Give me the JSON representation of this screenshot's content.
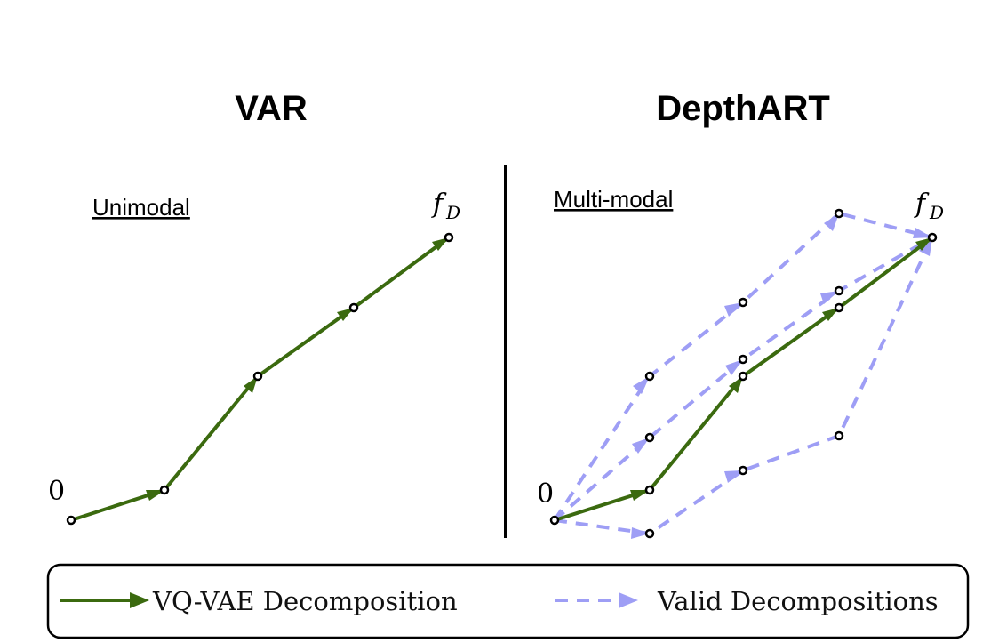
{
  "panels": [
    {
      "title": "VAR",
      "subtitle": "Unimodal",
      "start_label": "0",
      "end_label": "f",
      "end_label_sub": "D"
    },
    {
      "title": "DepthART",
      "subtitle": "Multi-modal",
      "start_label": "0",
      "end_label": "f",
      "end_label_sub": "D"
    }
  ],
  "legend": {
    "solid_label": "VQ-VAE Decomposition",
    "dashed_label": "Valid Decompositions"
  },
  "colors": {
    "solid_path": "#3b6a0f",
    "dashed_path": "#9e9ef5",
    "node_stroke": "#000000",
    "divider": "#000000"
  }
}
